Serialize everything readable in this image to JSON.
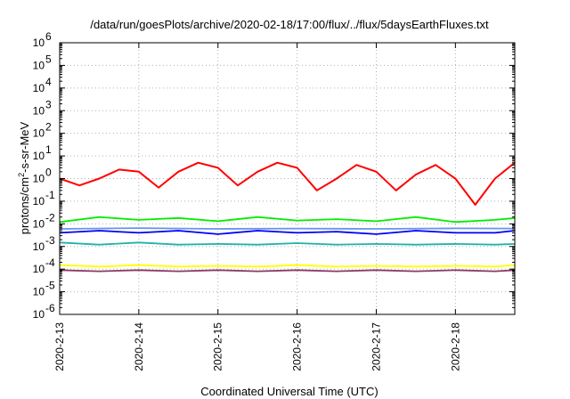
{
  "chart_data": {
    "type": "line",
    "title": "/data/run/goesPlots/archive/2020-02-18/17:00/flux/../flux/5daysEarthFluxes.txt",
    "xlabel": "Coordinated Universal Time (UTC)",
    "ylabel": "protons/cm²-s-sr-MeV",
    "yscale": "log",
    "ylim": [
      1e-06,
      1000000.0
    ],
    "xlim": [
      "2020-02-13",
      "2020-02-18T18:00"
    ],
    "grid": true,
    "legend": "none",
    "x_tick_labels": [
      "2020-2-13",
      "2020-2-14",
      "2020-2-15",
      "2020-2-16",
      "2020-2-17",
      "2020-2-18"
    ],
    "y_tick_exponents": [
      "-6",
      "-5",
      "-4",
      "-3",
      "-2",
      "-1",
      "0",
      "1",
      "2",
      "3",
      "4",
      "5",
      "6"
    ],
    "series": [
      {
        "color": "#ff0000",
        "x": [
          "2020-02-13T00:00",
          "2020-02-13T06:00",
          "2020-02-13T12:00",
          "2020-02-13T18:00",
          "2020-02-14T00:00",
          "2020-02-14T06:00",
          "2020-02-14T12:00",
          "2020-02-14T18:00",
          "2020-02-15T00:00",
          "2020-02-15T06:00",
          "2020-02-15T12:00",
          "2020-02-15T18:00",
          "2020-02-16T00:00",
          "2020-02-16T06:00",
          "2020-02-16T12:00",
          "2020-02-16T18:00",
          "2020-02-17T00:00",
          "2020-02-17T06:00",
          "2020-02-17T12:00",
          "2020-02-17T18:00",
          "2020-02-18T00:00",
          "2020-02-18T06:00",
          "2020-02-18T12:00",
          "2020-02-18T18:00"
        ],
        "values": [
          1.0,
          0.5,
          1.0,
          2.5,
          2.0,
          0.4,
          2.0,
          5.0,
          3.0,
          0.5,
          2.0,
          5.0,
          3.0,
          0.3,
          1.0,
          4.0,
          2.0,
          0.3,
          1.5,
          4.0,
          1.0,
          0.07,
          1.0,
          5.0
        ]
      },
      {
        "color": "#00ee00",
        "x": [
          "2020-02-13T00:00",
          "2020-02-13T12:00",
          "2020-02-14T00:00",
          "2020-02-14T12:00",
          "2020-02-15T00:00",
          "2020-02-15T12:00",
          "2020-02-16T00:00",
          "2020-02-16T12:00",
          "2020-02-17T00:00",
          "2020-02-17T12:00",
          "2020-02-18T00:00",
          "2020-02-18T12:00",
          "2020-02-18T18:00"
        ],
        "values": [
          0.012,
          0.02,
          0.015,
          0.018,
          0.013,
          0.02,
          0.014,
          0.016,
          0.013,
          0.02,
          0.012,
          0.015,
          0.018
        ]
      },
      {
        "color": "#0000ff",
        "x": [
          "2020-02-13T00:00",
          "2020-02-13T12:00",
          "2020-02-14T00:00",
          "2020-02-14T12:00",
          "2020-02-15T00:00",
          "2020-02-15T12:00",
          "2020-02-16T00:00",
          "2020-02-16T12:00",
          "2020-02-17T00:00",
          "2020-02-17T12:00",
          "2020-02-18T00:00",
          "2020-02-18T12:00",
          "2020-02-18T18:00"
        ],
        "values": [
          0.004,
          0.005,
          0.004,
          0.005,
          0.0035,
          0.005,
          0.004,
          0.0045,
          0.0035,
          0.005,
          0.004,
          0.004,
          0.005
        ]
      },
      {
        "color": "#6495ed",
        "x": [
          "2020-02-13T00:00",
          "2020-02-14T00:00",
          "2020-02-15T00:00",
          "2020-02-16T00:00",
          "2020-02-17T00:00",
          "2020-02-18T00:00",
          "2020-02-18T18:00"
        ],
        "values": [
          0.006,
          0.0065,
          0.006,
          0.0062,
          0.006,
          0.0063,
          0.0062
        ]
      },
      {
        "color": "#20b2aa",
        "x": [
          "2020-02-13T00:00",
          "2020-02-13T12:00",
          "2020-02-14T00:00",
          "2020-02-14T12:00",
          "2020-02-15T00:00",
          "2020-02-15T12:00",
          "2020-02-16T00:00",
          "2020-02-16T12:00",
          "2020-02-17T00:00",
          "2020-02-17T12:00",
          "2020-02-18T00:00",
          "2020-02-18T12:00",
          "2020-02-18T18:00"
        ],
        "values": [
          0.0015,
          0.0012,
          0.0015,
          0.0012,
          0.0013,
          0.0012,
          0.0014,
          0.0012,
          0.0013,
          0.0012,
          0.0013,
          0.0012,
          0.0013
        ]
      },
      {
        "color": "#ffff00",
        "x": [
          "2020-02-13T00:00",
          "2020-02-13T12:00",
          "2020-02-14T00:00",
          "2020-02-14T12:00",
          "2020-02-15T00:00",
          "2020-02-15T12:00",
          "2020-02-16T00:00",
          "2020-02-16T12:00",
          "2020-02-17T00:00",
          "2020-02-17T12:00",
          "2020-02-18T00:00",
          "2020-02-18T12:00",
          "2020-02-18T18:00"
        ],
        "values": [
          0.00015,
          0.00013,
          0.00015,
          0.00013,
          0.00014,
          0.00013,
          0.00015,
          0.00013,
          0.00014,
          0.00013,
          0.00014,
          0.00013,
          0.00015
        ]
      },
      {
        "color": "#8b3a62",
        "x": [
          "2020-02-13T00:00",
          "2020-02-13T12:00",
          "2020-02-14T00:00",
          "2020-02-14T12:00",
          "2020-02-15T00:00",
          "2020-02-15T12:00",
          "2020-02-16T00:00",
          "2020-02-16T12:00",
          "2020-02-17T00:00",
          "2020-02-17T12:00",
          "2020-02-18T00:00",
          "2020-02-18T12:00",
          "2020-02-18T18:00"
        ],
        "values": [
          9e-05,
          8e-05,
          9e-05,
          8e-05,
          9e-05,
          8e-05,
          9e-05,
          8e-05,
          9e-05,
          8e-05,
          9e-05,
          8e-05,
          9e-05
        ]
      }
    ]
  }
}
